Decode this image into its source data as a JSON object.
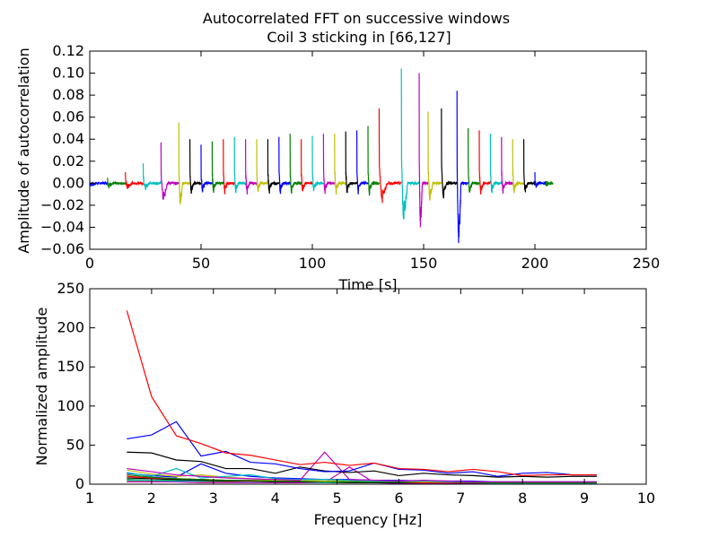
{
  "figure": {
    "title_line1": "Autocorrelated FFT on successive windows",
    "title_line2": "Coil 3 sticking in [66,127]"
  },
  "colors": [
    "#0000ff",
    "#008000",
    "#ff0000",
    "#00bfbf",
    "#bf00bf",
    "#bfbf00",
    "#000000"
  ],
  "chart_data": [
    {
      "type": "line",
      "title": "",
      "xlabel": "Time [s]",
      "ylabel": "Amplitude of autocorrelation",
      "xlim": [
        0,
        250
      ],
      "ylim": [
        -0.06,
        0.12
      ],
      "xticks": [
        0,
        50,
        100,
        150,
        200,
        250
      ],
      "xtick_labels": [
        "0",
        "50",
        "100",
        "150",
        "200",
        "250"
      ],
      "yticks": [
        -0.06,
        -0.04,
        -0.02,
        0.0,
        0.02,
        0.04,
        0.06,
        0.08,
        0.1,
        0.12
      ],
      "ytick_labels": [
        "−0.06",
        "−0.04",
        "−0.02",
        "0.00",
        "0.02",
        "0.04",
        "0.06",
        "0.08",
        "0.10",
        "0.12"
      ],
      "grid": false,
      "window_starts": [
        0,
        8,
        16,
        24,
        32,
        40,
        45,
        50,
        55,
        60,
        65,
        70,
        75,
        80,
        85,
        90,
        95,
        100,
        105,
        110,
        115,
        120,
        125,
        130,
        140,
        148,
        152,
        158,
        165,
        170,
        175,
        180,
        185,
        190,
        195,
        200,
        205
      ],
      "window_peaks": [
        0.002,
        0.005,
        0.01,
        0.018,
        0.037,
        0.055,
        0.04,
        0.035,
        0.038,
        0.04,
        0.042,
        0.04,
        0.04,
        0.04,
        0.042,
        0.045,
        0.04,
        0.043,
        0.045,
        0.045,
        0.047,
        0.048,
        0.052,
        0.068,
        0.104,
        0.1,
        0.065,
        0.068,
        0.084,
        0.05,
        0.048,
        0.045,
        0.042,
        0.04,
        0.04,
        0.01,
        0.002
      ],
      "window_troughs": [
        -0.001,
        -0.002,
        -0.003,
        -0.003,
        -0.013,
        -0.016,
        -0.005,
        -0.004,
        -0.004,
        -0.004,
        -0.004,
        -0.004,
        -0.004,
        -0.004,
        -0.004,
        -0.004,
        -0.004,
        -0.004,
        -0.004,
        -0.004,
        -0.004,
        -0.004,
        -0.005,
        -0.01,
        -0.026,
        -0.038,
        -0.01,
        -0.006,
        -0.054,
        -0.005,
        -0.005,
        -0.004,
        -0.004,
        -0.004,
        -0.004,
        -0.002,
        -0.001
      ]
    },
    {
      "type": "line",
      "title": "",
      "xlabel": "Frequency [Hz]",
      "ylabel": "Normalized amplitude",
      "xlim": [
        1,
        10
      ],
      "ylim": [
        0,
        250
      ],
      "xticks": [
        1,
        2,
        3,
        4,
        5,
        6,
        7,
        8,
        9,
        10
      ],
      "xtick_labels": [
        "1",
        "2",
        "3",
        "4",
        "5",
        "6",
        "7",
        "8",
        "9",
        "10"
      ],
      "yticks": [
        0,
        50,
        100,
        150,
        200,
        250
      ],
      "ytick_labels": [
        "0",
        "50",
        "100",
        "150",
        "200",
        "250"
      ],
      "grid": false,
      "x": [
        1.6,
        2.0,
        2.4,
        2.8,
        3.2,
        3.6,
        4.0,
        4.4,
        4.8,
        5.2,
        5.6,
        6.0,
        6.4,
        6.8,
        7.2,
        7.6,
        8.0,
        8.4,
        8.8,
        9.2
      ],
      "series": [
        {
          "values": [
            222,
            112,
            62,
            52,
            40,
            37,
            31,
            25,
            28,
            24,
            27,
            20,
            19,
            16,
            19,
            16,
            11,
            12,
            12,
            12
          ]
        },
        {
          "values": [
            58,
            63,
            80,
            36,
            42,
            28,
            26,
            20,
            16,
            17,
            27,
            19,
            18,
            14,
            16,
            10,
            14,
            15,
            12,
            12
          ]
        },
        {
          "values": [
            41,
            40,
            31,
            29,
            20,
            20,
            14,
            22,
            17,
            15,
            17,
            11,
            14,
            12,
            11,
            9,
            10,
            9,
            10,
            10
          ]
        },
        {
          "values": [
            20,
            16,
            12,
            10,
            8,
            7,
            6,
            5,
            41,
            6,
            5,
            4,
            5,
            4,
            3,
            3,
            3,
            3,
            3,
            3
          ]
        },
        {
          "values": [
            15,
            10,
            20,
            8,
            10,
            12,
            7,
            6,
            6,
            5,
            4,
            4,
            4,
            3,
            3,
            3,
            3,
            3,
            3,
            3
          ]
        },
        {
          "values": [
            18,
            13,
            10,
            12,
            9,
            7,
            5,
            5,
            4,
            5,
            4,
            4,
            3,
            3,
            3,
            3,
            3,
            3,
            3,
            3
          ]
        },
        {
          "values": [
            12,
            9,
            7,
            6,
            5,
            5,
            4,
            4,
            3,
            3,
            3,
            3,
            3,
            3,
            2,
            2,
            2,
            2,
            2,
            2
          ]
        },
        {
          "values": [
            14,
            11,
            9,
            26,
            14,
            10,
            8,
            7,
            6,
            6,
            5,
            5,
            4,
            4,
            4,
            3,
            3,
            3,
            3,
            3
          ]
        },
        {
          "values": [
            10,
            8,
            7,
            6,
            5,
            4,
            4,
            4,
            3,
            3,
            3,
            3,
            2,
            2,
            2,
            2,
            2,
            2,
            2,
            2
          ]
        },
        {
          "values": [
            8,
            7,
            6,
            5,
            4,
            4,
            3,
            3,
            3,
            2,
            2,
            2,
            2,
            2,
            2,
            2,
            2,
            2,
            2,
            2
          ]
        },
        {
          "values": [
            5,
            5,
            4,
            4,
            4,
            3,
            3,
            3,
            2,
            2,
            2,
            2,
            2,
            2,
            2,
            1,
            1,
            1,
            1,
            1
          ]
        },
        {
          "values": [
            3,
            3,
            3,
            2,
            2,
            2,
            2,
            2,
            2,
            22,
            2,
            1,
            1,
            1,
            1,
            1,
            1,
            1,
            1,
            1
          ]
        },
        {
          "values": [
            6,
            5,
            5,
            4,
            4,
            4,
            3,
            3,
            3,
            3,
            3,
            2,
            2,
            2,
            2,
            2,
            2,
            2,
            2,
            2
          ]
        },
        {
          "values": [
            4,
            4,
            3,
            3,
            3,
            3,
            2,
            2,
            2,
            2,
            2,
            2,
            2,
            1,
            1,
            1,
            1,
            1,
            1,
            1
          ]
        }
      ]
    }
  ]
}
